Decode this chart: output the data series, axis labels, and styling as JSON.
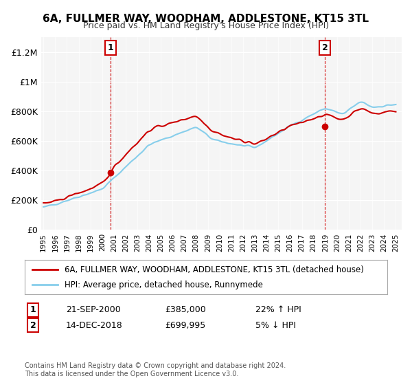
{
  "title": "6A, FULLMER WAY, WOODHAM, ADDLESTONE, KT15 3TL",
  "subtitle": "Price paid vs. HM Land Registry's House Price Index (HPI)",
  "xlim": [
    1995,
    2025.5
  ],
  "ylim": [
    0,
    1300000
  ],
  "yticks": [
    0,
    200000,
    400000,
    600000,
    800000,
    1000000,
    1200000
  ],
  "ytick_labels": [
    "£0",
    "£200K",
    "£400K",
    "£600K",
    "£800K",
    "£1M",
    "£1.2M"
  ],
  "xticks": [
    1995,
    1996,
    1997,
    1998,
    1999,
    2000,
    2001,
    2002,
    2003,
    2004,
    2005,
    2006,
    2007,
    2008,
    2009,
    2010,
    2011,
    2012,
    2013,
    2014,
    2015,
    2016,
    2017,
    2018,
    2019,
    2020,
    2021,
    2022,
    2023,
    2024,
    2025
  ],
  "hpi_color": "#87CEEB",
  "price_color": "#CC0000",
  "marker1_x": 2000.72,
  "marker1_y": 385000,
  "marker1_label": "1",
  "marker2_x": 2018.95,
  "marker2_y": 699995,
  "marker2_label": "2",
  "legend_line1": "6A, FULLMER WAY, WOODHAM, ADDLESTONE, KT15 3TL (detached house)",
  "legend_line2": "HPI: Average price, detached house, Runnymede",
  "annotation1_num": "1",
  "annotation1_date": "21-SEP-2000",
  "annotation1_price": "£385,000",
  "annotation1_hpi": "22% ↑ HPI",
  "annotation2_num": "2",
  "annotation2_date": "14-DEC-2018",
  "annotation2_price": "£699,995",
  "annotation2_hpi": "5% ↓ HPI",
  "footnote": "Contains HM Land Registry data © Crown copyright and database right 2024.\nThis data is licensed under the Open Government Licence v3.0.",
  "background_color": "#f5f5f5"
}
